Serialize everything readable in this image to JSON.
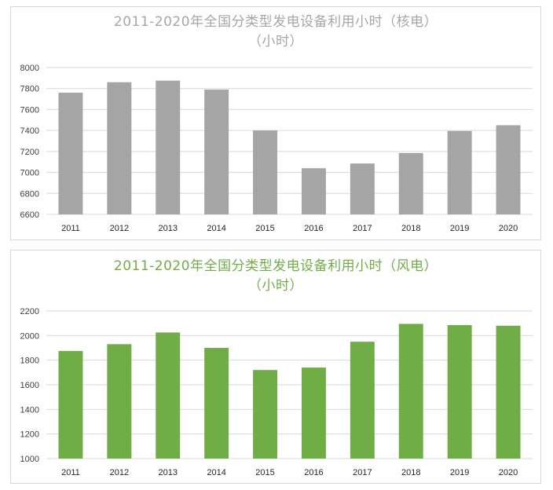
{
  "chart_data": [
    {
      "type": "bar",
      "title": "2011-2020年全国分类型发电设备利用小时（核电）",
      "subtitle": "（小时）",
      "title_color": "#a6a6a6",
      "bar_color": "#a5a5a5",
      "categories": [
        "2011",
        "2012",
        "2013",
        "2014",
        "2015",
        "2016",
        "2017",
        "2018",
        "2019",
        "2020"
      ],
      "values": [
        7760,
        7860,
        7875,
        7790,
        7400,
        7040,
        7085,
        7185,
        7395,
        7450
      ],
      "ylim": [
        6600,
        8000
      ],
      "yticks": [
        "6600",
        "6800",
        "7000",
        "7200",
        "7400",
        "7600",
        "7800",
        "8000"
      ],
      "xlabel": "",
      "ylabel": "",
      "grid": true
    },
    {
      "type": "bar",
      "title": "2011-2020年全国分类型发电设备利用小时（风电）",
      "subtitle": "（小时）",
      "title_color": "#70ad47",
      "bar_color": "#70ad47",
      "categories": [
        "2011",
        "2012",
        "2013",
        "2014",
        "2015",
        "2016",
        "2017",
        "2018",
        "2019",
        "2020"
      ],
      "values": [
        1875,
        1930,
        2025,
        1900,
        1720,
        1740,
        1950,
        2095,
        2085,
        2080
      ],
      "ylim": [
        1000,
        2200
      ],
      "yticks": [
        "1000",
        "1200",
        "1400",
        "1600",
        "1800",
        "2000",
        "2200"
      ],
      "xlabel": "",
      "ylabel": "",
      "grid": true
    }
  ]
}
